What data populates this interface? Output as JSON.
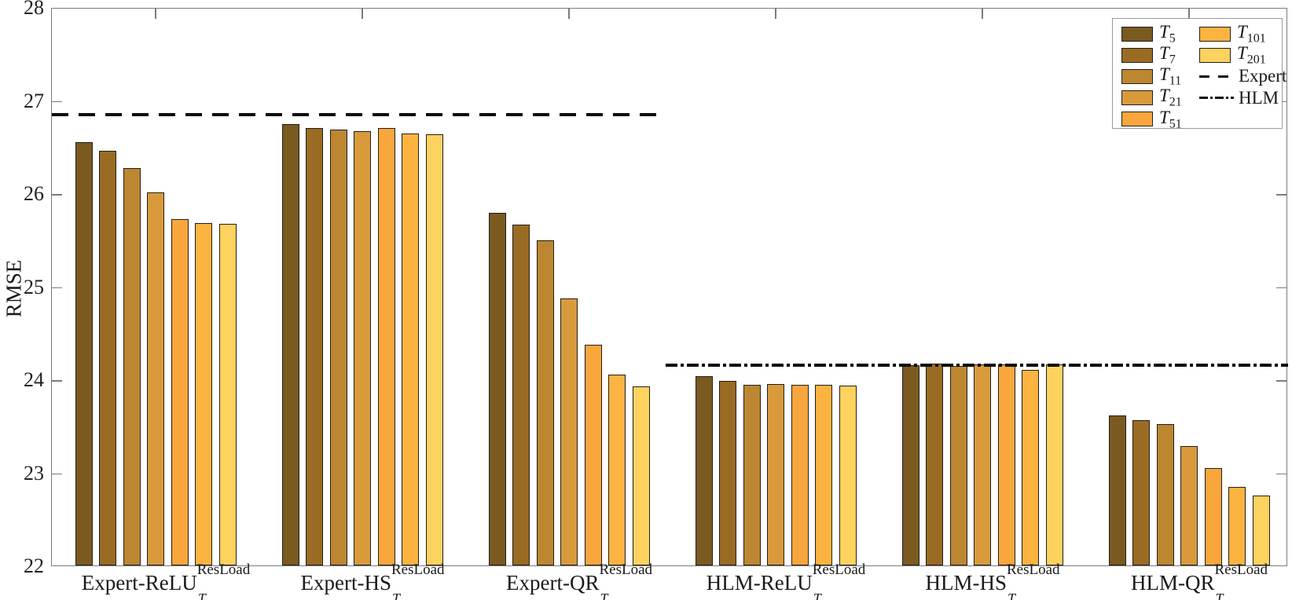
{
  "chart_data": {
    "type": "bar",
    "title": "",
    "xlabel": "",
    "ylabel": "RMSE",
    "ylim": [
      22,
      28
    ],
    "yticks": [
      22,
      23,
      24,
      25,
      26,
      27,
      28
    ],
    "grid": false,
    "legend_position": "top-right",
    "series": [
      {
        "name": "T_5",
        "color": "#7a5a1f"
      },
      {
        "name": "T_7",
        "color": "#9a6b22"
      },
      {
        "name": "T_11",
        "color": "#bd8630"
      },
      {
        "name": "T_21",
        "color": "#d99a3c"
      },
      {
        "name": "T_51",
        "color": "#f9a63d"
      },
      {
        "name": "T_101",
        "color": "#fcb340"
      },
      {
        "name": "T_201",
        "color": "#fed25e"
      }
    ],
    "groups": [
      {
        "label_prefix": "Expert-ReLU",
        "label_sub": "T",
        "label_sup": "ResLoad",
        "values": [
          26.55,
          26.46,
          26.27,
          26.01,
          25.72,
          25.68,
          25.67
        ]
      },
      {
        "label_prefix": "Expert-HS",
        "label_sub": "T",
        "label_sup": "ResLoad",
        "values": [
          26.74,
          26.7,
          26.68,
          26.67,
          26.7,
          26.64,
          26.63
        ]
      },
      {
        "label_prefix": "Expert-QR",
        "label_sub": "T",
        "label_sup": "ResLoad",
        "values": [
          25.79,
          25.66,
          25.49,
          24.87,
          24.37,
          24.05,
          23.92
        ]
      },
      {
        "label_prefix": "HLM-ReLU",
        "label_sub": "T",
        "label_sup": "ResLoad",
        "values": [
          24.03,
          23.98,
          23.94,
          23.95,
          23.94,
          23.94,
          23.93
        ]
      },
      {
        "label_prefix": "HLM-HS",
        "label_sub": "T",
        "label_sup": "ResLoad",
        "values": [
          24.15,
          24.17,
          24.14,
          24.16,
          24.16,
          24.1,
          24.16
        ]
      },
      {
        "label_prefix": "HLM-QR",
        "label_sub": "T",
        "label_sup": "ResLoad",
        "values": [
          23.61,
          23.56,
          23.52,
          23.28,
          23.05,
          22.84,
          22.75
        ]
      }
    ],
    "baselines": [
      {
        "name": "Expert",
        "style": "dashed",
        "value": 26.86,
        "span": "left-half"
      },
      {
        "name": "HLM",
        "style": "dashdot",
        "value": 24.17,
        "span": "right-half"
      }
    ]
  },
  "legend": {
    "items": [
      {
        "type": "swatch",
        "base": "T",
        "sub": "5",
        "color": "#7a5a1f"
      },
      {
        "type": "swatch",
        "base": "T",
        "sub": "7",
        "color": "#9a6b22"
      },
      {
        "type": "swatch",
        "base": "T",
        "sub": "11",
        "color": "#bd8630"
      },
      {
        "type": "swatch",
        "base": "T",
        "sub": "21",
        "color": "#d99a3c"
      },
      {
        "type": "swatch",
        "base": "T",
        "sub": "51",
        "color": "#f9a63d"
      },
      {
        "type": "swatch",
        "base": "T",
        "sub": "101",
        "color": "#fcb340"
      },
      {
        "type": "swatch",
        "base": "T",
        "sub": "201",
        "color": "#fed25e"
      },
      {
        "type": "dashed",
        "label": "Expert"
      },
      {
        "type": "dashdot",
        "label": "HLM"
      }
    ]
  },
  "colors": {
    "spine": "#7b7b7b",
    "baseline": "#0a0a0a",
    "bar_edge": "#1f1f1f",
    "text": "#1a1a1a"
  }
}
